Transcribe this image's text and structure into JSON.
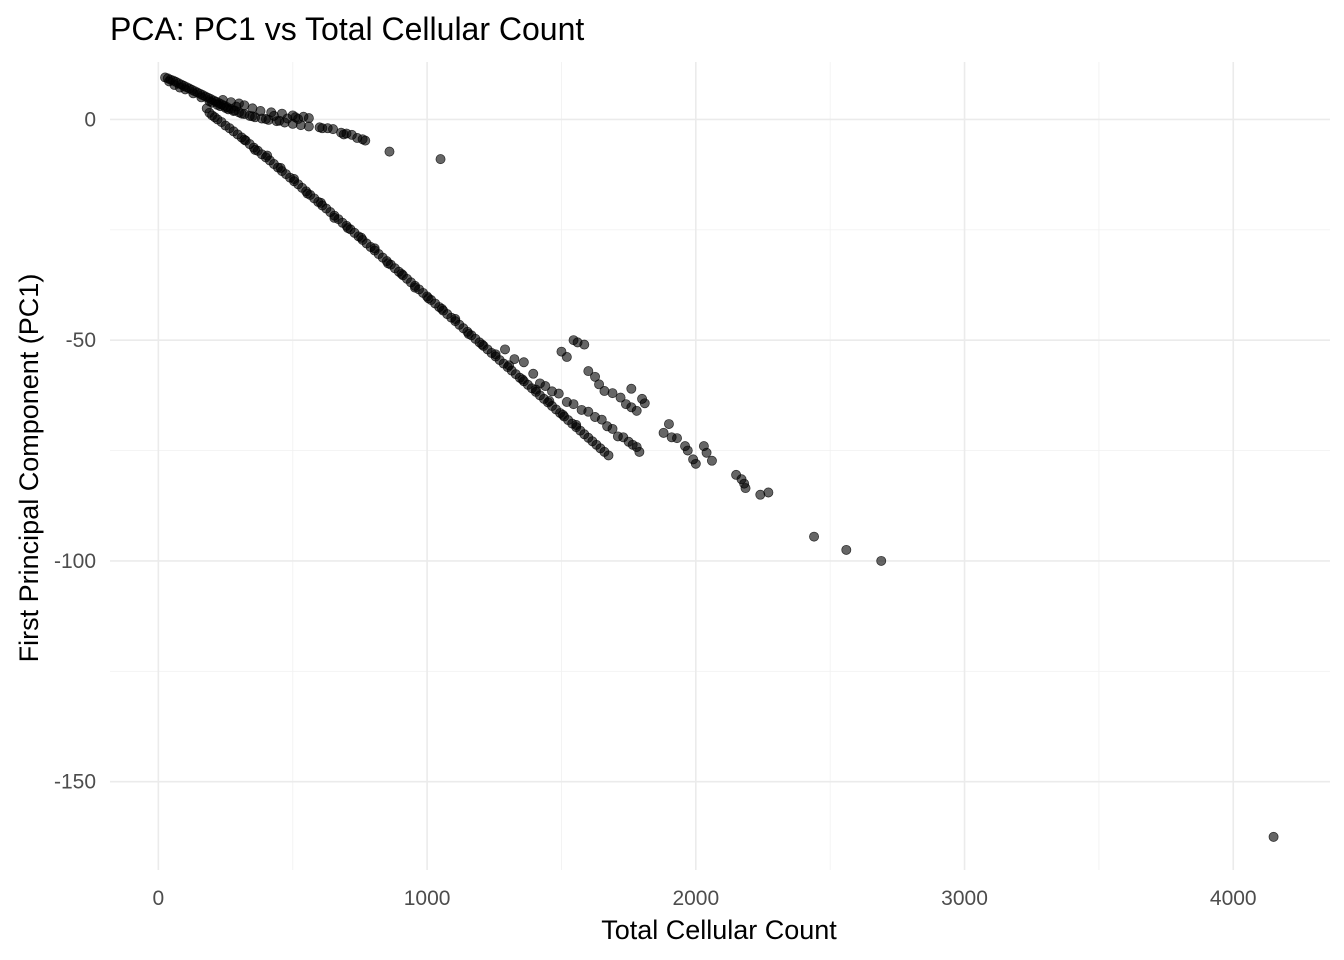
{
  "chart_data": {
    "type": "scatter",
    "title": "PCA: PC1 vs Total Cellular Count",
    "xlabel": "Total Cellular Count",
    "ylabel": "First Principal Component (PC1)",
    "xlim": [
      -180,
      4360
    ],
    "ylim": [
      -170,
      13
    ],
    "x_ticks": [
      0,
      1000,
      2000,
      3000,
      4000
    ],
    "x_tick_labels": [
      "0",
      "1000",
      "2000",
      "3000",
      "4000"
    ],
    "x_minor_ticks": [
      500,
      1500,
      2500,
      3500
    ],
    "y_ticks": [
      0,
      -50,
      -100,
      -150
    ],
    "y_tick_labels": [
      "0",
      "-50",
      "-100",
      "-150"
    ],
    "y_minor_ticks": [
      -25,
      -75,
      -125
    ],
    "grid": true,
    "legend": "none",
    "point_color": "#000000",
    "point_alpha": 0.6,
    "series": [
      {
        "points": [
          [
            25,
            9.5
          ],
          [
            35,
            9.3
          ],
          [
            45,
            9.0
          ],
          [
            55,
            8.8
          ],
          [
            65,
            8.5
          ],
          [
            75,
            8.2
          ],
          [
            85,
            7.9
          ],
          [
            95,
            7.6
          ],
          [
            105,
            7.3
          ],
          [
            115,
            7.0
          ],
          [
            125,
            6.7
          ],
          [
            135,
            6.4
          ],
          [
            145,
            6.1
          ],
          [
            155,
            5.8
          ],
          [
            165,
            5.5
          ],
          [
            175,
            5.2
          ],
          [
            185,
            4.9
          ],
          [
            195,
            4.6
          ],
          [
            205,
            4.3
          ],
          [
            215,
            4.0
          ],
          [
            225,
            3.7
          ],
          [
            235,
            3.4
          ],
          [
            245,
            3.1
          ],
          [
            255,
            2.8
          ],
          [
            270,
            2.4
          ],
          [
            285,
            2.0
          ],
          [
            300,
            1.6
          ],
          [
            320,
            1.2
          ],
          [
            340,
            0.8
          ],
          [
            360,
            0.5
          ],
          [
            385,
            0.2
          ],
          [
            410,
            -0.1
          ],
          [
            440,
            -0.4
          ],
          [
            470,
            -0.7
          ],
          [
            500,
            -1.0
          ],
          [
            530,
            -1.3
          ],
          [
            560,
            -1.6
          ],
          [
            40,
            8.6
          ],
          [
            60,
            7.8
          ],
          [
            80,
            7.2
          ],
          [
            100,
            6.8
          ],
          [
            130,
            5.9
          ],
          [
            160,
            5.0
          ],
          [
            190,
            4.1
          ],
          [
            220,
            3.3
          ],
          [
            250,
            2.6
          ],
          [
            280,
            1.9
          ],
          [
            310,
            1.3
          ],
          [
            350,
            0.7
          ],
          [
            400,
            0.1
          ],
          [
            450,
            -0.3
          ],
          [
            200,
            3.8
          ],
          [
            230,
            3.0
          ],
          [
            260,
            2.3
          ],
          [
            290,
            2.9
          ],
          [
            320,
            3.2
          ],
          [
            350,
            2.5
          ],
          [
            380,
            1.9
          ],
          [
            420,
            1.6
          ],
          [
            460,
            1.3
          ],
          [
            500,
            0.9
          ],
          [
            540,
            0.6
          ],
          [
            560,
            0.3
          ],
          [
            300,
            3.6
          ],
          [
            270,
            3.9
          ],
          [
            240,
            4.4
          ],
          [
            520,
            0.1
          ],
          [
            510,
            0.5
          ],
          [
            430,
            0.8
          ],
          [
            480,
            0.2
          ],
          [
            600,
            -1.8
          ],
          [
            610,
            -2.0
          ],
          [
            650,
            -2.2
          ],
          [
            680,
            -3.0
          ],
          [
            690,
            -3.4
          ],
          [
            720,
            -3.5
          ],
          [
            740,
            -4.2
          ],
          [
            760,
            -4.5
          ],
          [
            770,
            -4.8
          ],
          [
            860,
            -7.3
          ],
          [
            1050,
            -9.0
          ],
          [
            630,
            -2.0
          ],
          [
            700,
            -3.2
          ],
          [
            180,
            2.5
          ],
          [
            190,
            1.5
          ],
          [
            200,
            0.9
          ],
          [
            210,
            0.5
          ],
          [
            220,
            0.0
          ],
          [
            235,
            -0.6
          ],
          [
            250,
            -1.4
          ],
          [
            265,
            -2.0
          ],
          [
            280,
            -2.7
          ],
          [
            295,
            -3.4
          ],
          [
            310,
            -4.1
          ],
          [
            325,
            -4.8
          ],
          [
            340,
            -5.6
          ],
          [
            355,
            -6.4
          ],
          [
            370,
            -7.1
          ],
          [
            385,
            -7.9
          ],
          [
            400,
            -8.6
          ],
          [
            415,
            -9.3
          ],
          [
            430,
            -10.1
          ],
          [
            445,
            -10.9
          ],
          [
            460,
            -11.7
          ],
          [
            475,
            -12.4
          ],
          [
            490,
            -13.2
          ],
          [
            505,
            -14.0
          ],
          [
            520,
            -14.7
          ],
          [
            535,
            -15.5
          ],
          [
            550,
            -16.3
          ],
          [
            565,
            -17.1
          ],
          [
            580,
            -17.9
          ],
          [
            595,
            -18.7
          ],
          [
            610,
            -19.5
          ],
          [
            625,
            -20.2
          ],
          [
            640,
            -21.0
          ],
          [
            655,
            -21.8
          ],
          [
            670,
            -22.6
          ],
          [
            685,
            -23.4
          ],
          [
            700,
            -24.1
          ],
          [
            715,
            -24.9
          ],
          [
            730,
            -25.7
          ],
          [
            745,
            -26.5
          ],
          [
            760,
            -27.3
          ],
          [
            775,
            -28.1
          ],
          [
            790,
            -28.9
          ],
          [
            805,
            -29.7
          ],
          [
            820,
            -30.5
          ],
          [
            835,
            -31.3
          ],
          [
            850,
            -32.1
          ],
          [
            865,
            -32.9
          ],
          [
            880,
            -33.7
          ],
          [
            895,
            -34.5
          ],
          [
            910,
            -35.3
          ],
          [
            925,
            -36.1
          ],
          [
            940,
            -36.9
          ],
          [
            955,
            -37.7
          ],
          [
            970,
            -38.5
          ],
          [
            985,
            -39.3
          ],
          [
            1000,
            -40.1
          ],
          [
            1015,
            -40.9
          ],
          [
            1030,
            -41.7
          ],
          [
            1045,
            -42.5
          ],
          [
            1060,
            -43.3
          ],
          [
            1075,
            -44.1
          ],
          [
            1090,
            -44.9
          ],
          [
            1105,
            -45.7
          ],
          [
            1120,
            -46.5
          ],
          [
            1135,
            -47.3
          ],
          [
            1150,
            -48.1
          ],
          [
            1165,
            -48.9
          ],
          [
            1180,
            -49.7
          ],
          [
            1195,
            -50.5
          ],
          [
            1210,
            -51.3
          ],
          [
            1225,
            -52.1
          ],
          [
            1240,
            -52.9
          ],
          [
            1255,
            -53.7
          ],
          [
            1270,
            -54.5
          ],
          [
            1285,
            -55.3
          ],
          [
            1300,
            -56.1
          ],
          [
            1315,
            -56.9
          ],
          [
            1330,
            -57.7
          ],
          [
            1345,
            -58.5
          ],
          [
            1360,
            -59.3
          ],
          [
            1375,
            -60.1
          ],
          [
            1390,
            -60.9
          ],
          [
            1405,
            -61.7
          ],
          [
            1420,
            -62.5
          ],
          [
            1435,
            -63.3
          ],
          [
            1450,
            -64.1
          ],
          [
            1465,
            -64.9
          ],
          [
            1480,
            -65.7
          ],
          [
            1495,
            -66.5
          ],
          [
            1510,
            -67.3
          ],
          [
            1525,
            -68.1
          ],
          [
            1540,
            -68.9
          ],
          [
            1555,
            -69.7
          ],
          [
            1570,
            -70.5
          ],
          [
            1585,
            -71.3
          ],
          [
            1600,
            -72.1
          ],
          [
            1615,
            -72.9
          ],
          [
            1630,
            -73.7
          ],
          [
            1645,
            -74.5
          ],
          [
            1660,
            -75.3
          ],
          [
            1675,
            -76.1
          ],
          [
            320,
            -4.6
          ],
          [
            360,
            -6.9
          ],
          [
            405,
            -8.2
          ],
          [
            455,
            -11.0
          ],
          [
            505,
            -13.5
          ],
          [
            555,
            -16.8
          ],
          [
            605,
            -18.9
          ],
          [
            655,
            -22.3
          ],
          [
            705,
            -24.6
          ],
          [
            755,
            -26.8
          ],
          [
            805,
            -29.2
          ],
          [
            855,
            -32.6
          ],
          [
            905,
            -35.0
          ],
          [
            955,
            -38.1
          ],
          [
            1005,
            -40.5
          ],
          [
            1055,
            -42.9
          ],
          [
            1105,
            -45.2
          ],
          [
            1155,
            -48.6
          ],
          [
            1205,
            -51.0
          ],
          [
            1255,
            -53.2
          ],
          [
            1305,
            -55.7
          ],
          [
            1355,
            -58.9
          ],
          [
            1405,
            -61.2
          ],
          [
            1455,
            -63.8
          ],
          [
            1505,
            -66.9
          ],
          [
            1555,
            -69.2
          ],
          [
            1290,
            -52.1
          ],
          [
            1325,
            -54.3
          ],
          [
            1360,
            -55.0
          ],
          [
            1395,
            -57.6
          ],
          [
            1420,
            -59.8
          ],
          [
            1440,
            -60.4
          ],
          [
            1465,
            -61.6
          ],
          [
            1490,
            -62.1
          ],
          [
            1520,
            -64.0
          ],
          [
            1545,
            -64.5
          ],
          [
            1575,
            -65.8
          ],
          [
            1600,
            -66.2
          ],
          [
            1625,
            -67.4
          ],
          [
            1650,
            -68.0
          ],
          [
            1670,
            -69.5
          ],
          [
            1690,
            -70.1
          ],
          [
            1710,
            -71.8
          ],
          [
            1730,
            -72.0
          ],
          [
            1750,
            -73.0
          ],
          [
            1765,
            -73.7
          ],
          [
            1780,
            -74.2
          ],
          [
            1790,
            -75.3
          ],
          [
            1545,
            -50.0
          ],
          [
            1560,
            -50.5
          ],
          [
            1585,
            -51.0
          ],
          [
            1500,
            -52.6
          ],
          [
            1520,
            -53.8
          ],
          [
            1600,
            -57.0
          ],
          [
            1625,
            -58.3
          ],
          [
            1640,
            -60.0
          ],
          [
            1660,
            -61.5
          ],
          [
            1690,
            -62.0
          ],
          [
            1720,
            -63.0
          ],
          [
            1740,
            -64.5
          ],
          [
            1760,
            -65.2
          ],
          [
            1780,
            -66.0
          ],
          [
            1800,
            -63.3
          ],
          [
            1760,
            -61.0
          ],
          [
            1810,
            -64.3
          ],
          [
            1880,
            -71.0
          ],
          [
            1910,
            -72.0
          ],
          [
            1930,
            -72.2
          ],
          [
            1960,
            -74.0
          ],
          [
            1970,
            -75.0
          ],
          [
            1990,
            -77.0
          ],
          [
            2000,
            -78.0
          ],
          [
            2030,
            -74.0
          ],
          [
            2040,
            -75.5
          ],
          [
            2060,
            -77.3
          ],
          [
            1900,
            -69.0
          ],
          [
            2150,
            -80.5
          ],
          [
            2170,
            -81.5
          ],
          [
            2180,
            -82.5
          ],
          [
            2185,
            -83.5
          ],
          [
            2240,
            -85.0
          ],
          [
            2270,
            -84.5
          ],
          [
            2440,
            -94.5
          ],
          [
            2560,
            -97.5
          ],
          [
            2690,
            -100.0
          ],
          [
            4150,
            -162.5
          ]
        ]
      }
    ]
  }
}
